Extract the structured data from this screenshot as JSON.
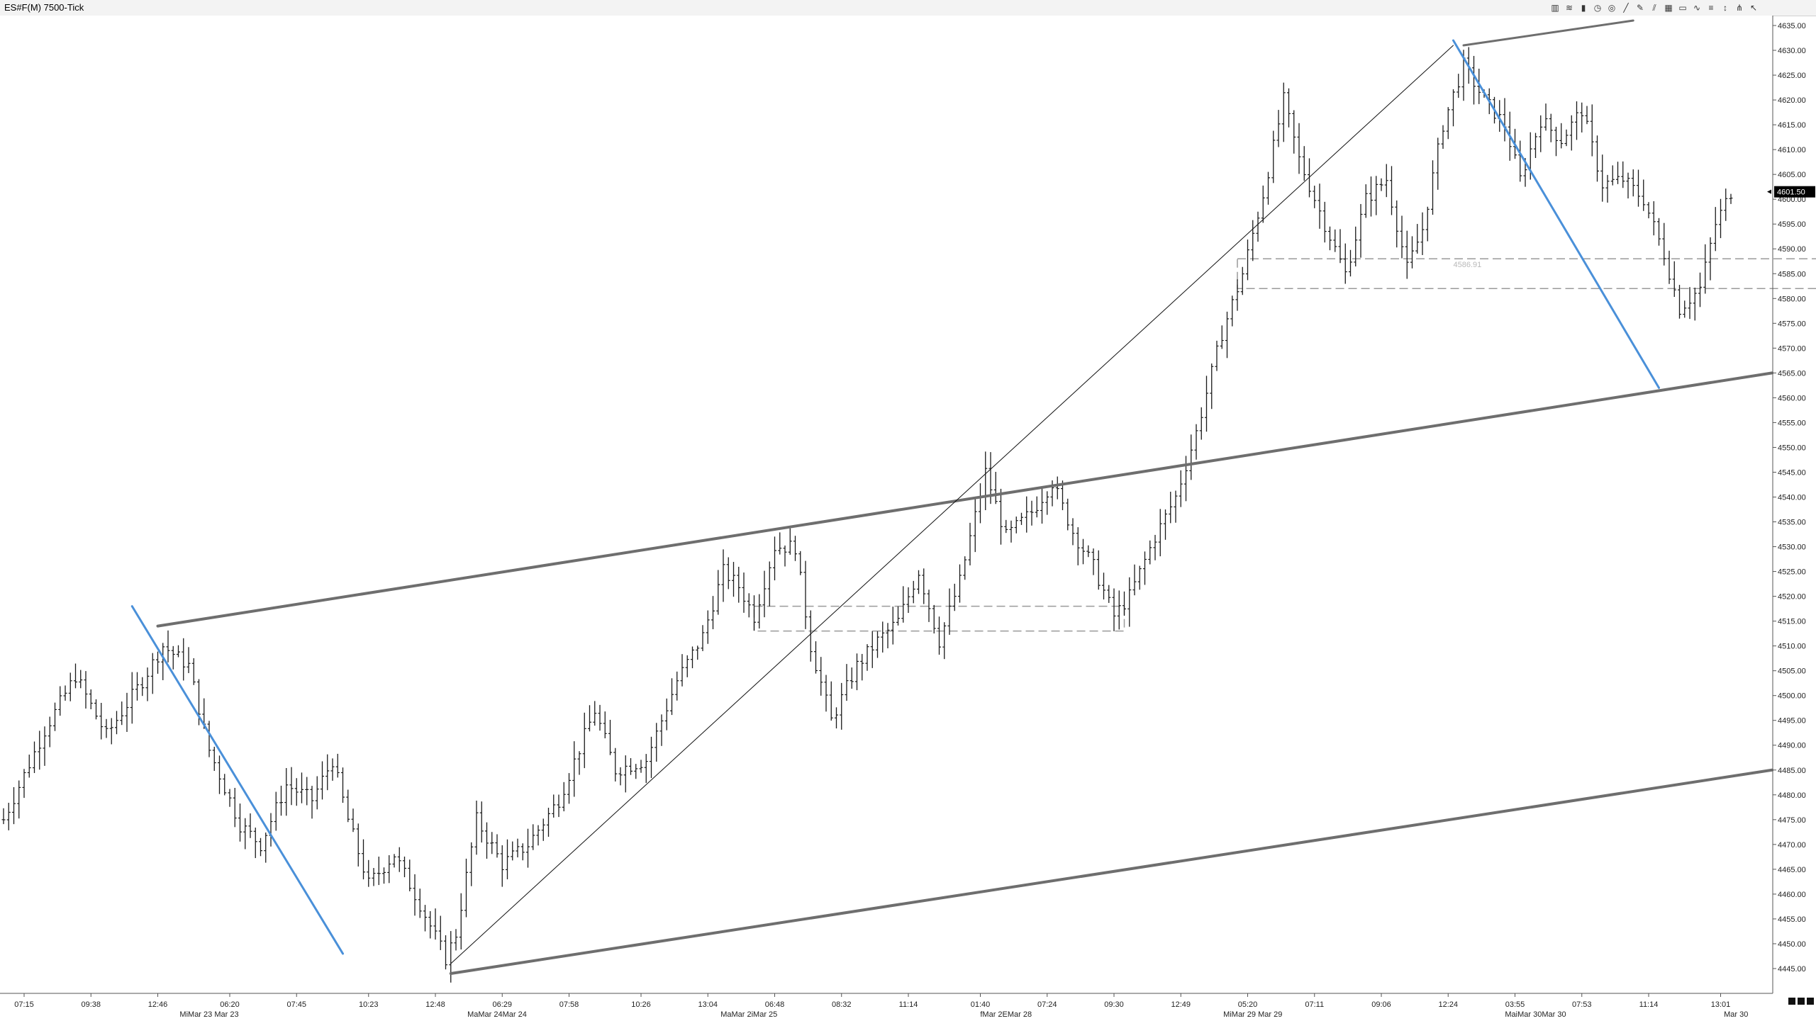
{
  "window": {
    "title": "ES#F(M) 7500-Tick"
  },
  "toolbar": {
    "icons": [
      "bar-style-icon",
      "wave-icon",
      "candle-icon",
      "clock-icon",
      "target-icon",
      "line-draw-icon",
      "pencil-icon",
      "channel-icon",
      "grid-icon",
      "rectangle-icon",
      "zigzag-icon",
      "fib-icon",
      "arrow-icon",
      "tuning-fork-icon",
      "cursor-icon"
    ]
  },
  "price_label": {
    "value": "4601.50",
    "note_value": "4586.91"
  },
  "chart_data": {
    "type": "bar",
    "title": "ES#F(M) 7500-Tick",
    "ylim": [
      4440,
      4637
    ],
    "y_ticks": [
      4445,
      4450,
      4455,
      4460,
      4465,
      4470,
      4475,
      4480,
      4485,
      4490,
      4495,
      4500,
      4505,
      4510,
      4515,
      4520,
      4525,
      4530,
      4535,
      4540,
      4545,
      4550,
      4555,
      4560,
      4565,
      4570,
      4575,
      4580,
      4585,
      4590,
      4595,
      4600,
      4605,
      4610,
      4615,
      4620,
      4625,
      4630,
      4635
    ],
    "y_tick_labels": [
      "4445.00",
      "4450.00",
      "4455.00",
      "4460.00",
      "4465.00",
      "4470.00",
      "4475.00",
      "4480.00",
      "4485.00",
      "4490.00",
      "4495.00",
      "4500.00",
      "4505.00",
      "4510.00",
      "4515.00",
      "4520.00",
      "4525.00",
      "4530.00",
      "4535.00",
      "4540.00",
      "4545.00",
      "4550.00",
      "4555.00",
      "4560.00",
      "4565.00",
      "4570.00",
      "4575.00",
      "4580.00",
      "4585.00",
      "4590.00",
      "4595.00",
      "4600.00",
      "4605.00",
      "4610.00",
      "4615.00",
      "4620.00",
      "4625.00",
      "4630.00",
      "4635.00"
    ],
    "bar_count": 340,
    "x_time_labels": [
      {
        "bar": 4,
        "label": "07:15"
      },
      {
        "bar": 17,
        "label": "09:38"
      },
      {
        "bar": 30,
        "label": "12:46"
      },
      {
        "bar": 44,
        "label": "06:20"
      },
      {
        "bar": 57,
        "label": "07:45"
      },
      {
        "bar": 71,
        "label": "10:23"
      },
      {
        "bar": 84,
        "label": "12:48"
      },
      {
        "bar": 97,
        "label": "06:29"
      },
      {
        "bar": 110,
        "label": "07:58"
      },
      {
        "bar": 124,
        "label": "10:26"
      },
      {
        "bar": 137,
        "label": "13:04"
      },
      {
        "bar": 150,
        "label": "06:48"
      },
      {
        "bar": 163,
        "label": "08:32"
      },
      {
        "bar": 176,
        "label": "11:14"
      },
      {
        "bar": 190,
        "label": "01:40"
      },
      {
        "bar": 203,
        "label": "07:24"
      },
      {
        "bar": 216,
        "label": "09:30"
      },
      {
        "bar": 229,
        "label": "12:49"
      },
      {
        "bar": 242,
        "label": "05:20"
      },
      {
        "bar": 255,
        "label": "07:11"
      },
      {
        "bar": 268,
        "label": "09:06"
      },
      {
        "bar": 281,
        "label": "12:24"
      },
      {
        "bar": 294,
        "label": "03:55"
      },
      {
        "bar": 307,
        "label": "07:53"
      },
      {
        "bar": 320,
        "label": "11:14"
      },
      {
        "bar": 334,
        "label": "13:01"
      }
    ],
    "x_date_labels": [
      {
        "bar": 40,
        "label": "MiMar 23 Mar 23"
      },
      {
        "bar": 96,
        "label": "MaMar 24Mar 24"
      },
      {
        "bar": 145,
        "label": "MaMar 2iMar 25"
      },
      {
        "bar": 195,
        "label": "fMar 2EMar 28"
      },
      {
        "bar": 243,
        "label": "MiMar 29    Mar 29"
      },
      {
        "bar": 298,
        "label": "MaiMar 30Mar 30"
      },
      {
        "bar": 337,
        "label": "Mar 30"
      }
    ],
    "anchors": [
      [
        0,
        4475
      ],
      [
        8,
        4493
      ],
      [
        14,
        4504
      ],
      [
        20,
        4492
      ],
      [
        27,
        4503
      ],
      [
        31,
        4510
      ],
      [
        36,
        4506
      ],
      [
        40,
        4489
      ],
      [
        46,
        4474
      ],
      [
        50,
        4470
      ],
      [
        55,
        4482
      ],
      [
        60,
        4479
      ],
      [
        64,
        4487
      ],
      [
        67,
        4475
      ],
      [
        71,
        4462
      ],
      [
        76,
        4468
      ],
      [
        81,
        4458
      ],
      [
        86,
        4447
      ],
      [
        88,
        4452
      ],
      [
        92,
        4475
      ],
      [
        97,
        4466
      ],
      [
        102,
        4470
      ],
      [
        108,
        4479
      ],
      [
        115,
        4497
      ],
      [
        119,
        4485
      ],
      [
        125,
        4487
      ],
      [
        131,
        4503
      ],
      [
        136,
        4512
      ],
      [
        140,
        4525
      ],
      [
        143,
        4522
      ],
      [
        146,
        4516
      ],
      [
        150,
        4530
      ],
      [
        154,
        4530
      ],
      [
        157,
        4510
      ],
      [
        161,
        4495
      ],
      [
        166,
        4506
      ],
      [
        170,
        4511
      ],
      [
        174,
        4515
      ],
      [
        178,
        4525
      ],
      [
        182,
        4511
      ],
      [
        186,
        4523
      ],
      [
        191,
        4545
      ],
      [
        195,
        4532
      ],
      [
        200,
        4537
      ],
      [
        204,
        4543
      ],
      [
        208,
        4533
      ],
      [
        212,
        4526
      ],
      [
        216,
        4516
      ],
      [
        219,
        4520
      ],
      [
        224,
        4532
      ],
      [
        228,
        4540
      ],
      [
        232,
        4553
      ],
      [
        237,
        4573
      ],
      [
        241,
        4585
      ],
      [
        245,
        4601
      ],
      [
        249,
        4620
      ],
      [
        252,
        4608
      ],
      [
        257,
        4595
      ],
      [
        261,
        4585
      ],
      [
        265,
        4600
      ],
      [
        269,
        4604
      ],
      [
        273,
        4586
      ],
      [
        276,
        4594
      ],
      [
        280,
        4615
      ],
      [
        284,
        4627
      ],
      [
        288,
        4620
      ],
      [
        292,
        4615
      ],
      [
        295,
        4604
      ],
      [
        299,
        4616
      ],
      [
        303,
        4612
      ],
      [
        307,
        4618
      ],
      [
        311,
        4603
      ],
      [
        315,
        4604
      ],
      [
        319,
        4600
      ],
      [
        323,
        4589
      ],
      [
        326,
        4578
      ],
      [
        330,
        4582
      ],
      [
        333,
        4595
      ],
      [
        336,
        4601.5
      ]
    ],
    "trendlines": [
      {
        "name": "channel-upper-1",
        "p1": [
          30,
          4514
        ],
        "p2": [
          344,
          4565
        ],
        "color": "#6e6e6e",
        "width": 4
      },
      {
        "name": "channel-upper-2",
        "p1": [
          284,
          4631
        ],
        "p2": [
          317,
          4636
        ],
        "color": "#6e6e6e",
        "width": 3
      },
      {
        "name": "channel-lower",
        "p1": [
          87,
          4444
        ],
        "p2": [
          344,
          4485
        ],
        "color": "#6e6e6e",
        "width": 4
      },
      {
        "name": "diagonal-thin",
        "p1": [
          87,
          4446
        ],
        "p2": [
          282,
          4631
        ],
        "color": "#111111",
        "width": 1
      },
      {
        "name": "blue-line-1",
        "p1": [
          25,
          4518
        ],
        "p2": [
          66,
          4448
        ],
        "color": "#4a90d9",
        "width": 3
      },
      {
        "name": "blue-line-2",
        "p1": [
          282,
          4632
        ],
        "p2": [
          322,
          4562
        ],
        "color": "#4a90d9",
        "width": 3
      }
    ],
    "zones": [
      {
        "name": "zone-1",
        "x1": 146,
        "x2": 218,
        "y1": 4513,
        "y2": 4518
      },
      {
        "name": "zone-2",
        "x1": 240,
        "x2": 353,
        "y1": 4582,
        "y2": 4588
      }
    ]
  }
}
